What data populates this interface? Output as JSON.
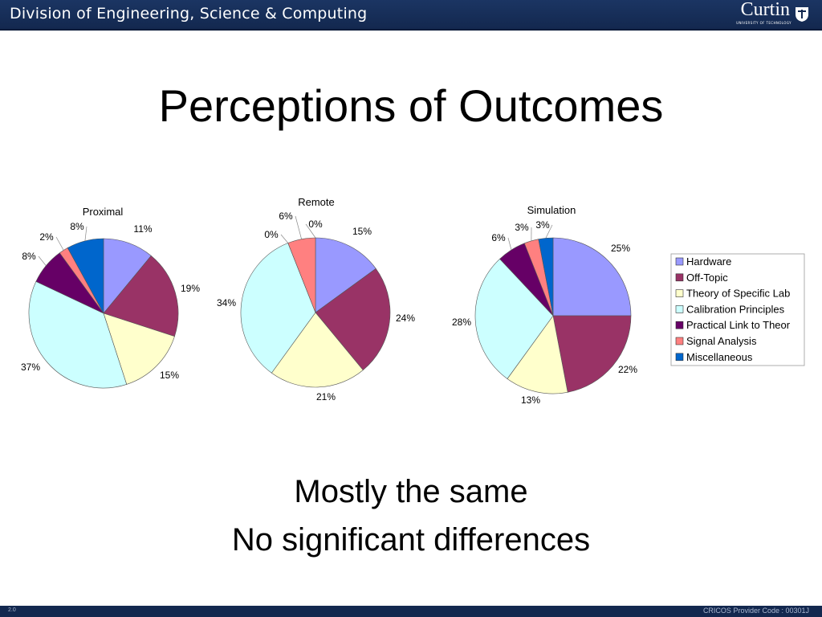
{
  "header": {
    "title": "Division of Engineering, Science & Computing",
    "logo_text": "Curtin",
    "logo_subtext": "UNIVERSITY OF TECHNOLOGY"
  },
  "slide": {
    "title": "Perceptions of Outcomes",
    "line1": "Mostly the same",
    "line2": "No significant differences"
  },
  "footer": {
    "left": "2.0",
    "right": "CRICOS Provider Code : 00301J"
  },
  "colors": {
    "header_bg": "#13284f",
    "text": "#000000"
  },
  "chart_data": [
    {
      "type": "pie",
      "title": "Proximal",
      "categories": [
        "Hardware",
        "Off-Topic",
        "Theory of Specific Lab",
        "Calibration Principles",
        "Practical Link to Theory",
        "Signal Analysis",
        "Miscellaneous"
      ],
      "values": [
        11,
        19,
        15,
        37,
        8,
        2,
        8
      ],
      "labels": [
        "11%",
        "19%",
        "15%",
        "37%",
        "8%",
        "2%",
        "8%"
      ],
      "colors": [
        "#9999ff",
        "#993366",
        "#ffffcc",
        "#ccffff",
        "#660066",
        "#ff8080",
        "#0066cc"
      ]
    },
    {
      "type": "pie",
      "title": "Remote",
      "categories": [
        "Hardware",
        "Off-Topic",
        "Theory of Specific Lab",
        "Calibration Principles",
        "Practical Link to Theory",
        "Signal Analysis",
        "Miscellaneous"
      ],
      "values": [
        15,
        24,
        21,
        34,
        0,
        6,
        0
      ],
      "labels": [
        "15%",
        "24%",
        "21%",
        "34%",
        "0%",
        "6%",
        "0%"
      ],
      "colors": [
        "#9999ff",
        "#993366",
        "#ffffcc",
        "#ccffff",
        "#660066",
        "#ff8080",
        "#0066cc"
      ]
    },
    {
      "type": "pie",
      "title": "Simulation",
      "categories": [
        "Hardware",
        "Off-Topic",
        "Theory of Specific Lab",
        "Calibration Principles",
        "Practical Link to Theory",
        "Signal Analysis",
        "Miscellaneous"
      ],
      "values": [
        25,
        22,
        13,
        28,
        6,
        3,
        3
      ],
      "labels": [
        "25%",
        "22%",
        "13%",
        "28%",
        "6%",
        "3%",
        "3%"
      ],
      "colors": [
        "#9999ff",
        "#993366",
        "#ffffcc",
        "#ccffff",
        "#660066",
        "#ff8080",
        "#0066cc"
      ],
      "legend": {
        "placement": "right",
        "entries": [
          "Hardware",
          "Off-Topic",
          "Theory of Specific Lab",
          "Calibration Principles",
          "Practical Link to Theor",
          "Signal Analysis",
          "Miscellaneous"
        ]
      }
    }
  ]
}
